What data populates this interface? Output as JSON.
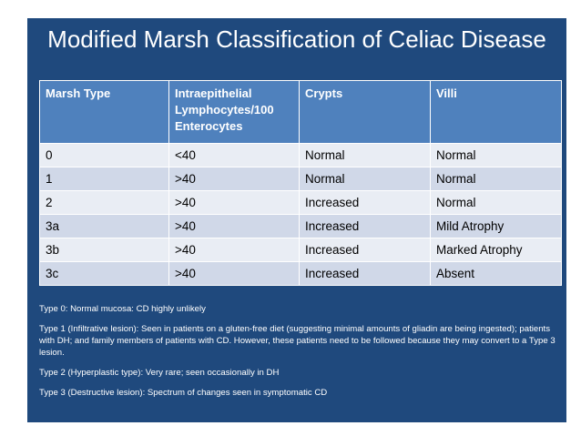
{
  "slide": {
    "title": "Modified Marsh Classification of Celiac Disease"
  },
  "table": {
    "headers": [
      "Marsh Type",
      "Intraepithelial Lymphocytes/100 Enterocytes",
      "Crypts",
      "Villi"
    ],
    "rows": [
      [
        "0",
        "<40",
        "Normal",
        "Normal"
      ],
      [
        "1",
        ">40",
        "Normal",
        "Normal"
      ],
      [
        "2",
        ">40",
        "Increased",
        "Normal"
      ],
      [
        "3a",
        ">40",
        "Increased",
        "Mild Atrophy"
      ],
      [
        "3b",
        ">40",
        "Increased",
        "Marked Atrophy"
      ],
      [
        "3c",
        ">40",
        "Increased",
        "Absent"
      ]
    ]
  },
  "notes": [
    "Type 0: Normal mucosa: CD highly unlikely",
    "Type 1 (Infiltrative lesion): Seen in patients on a gluten-free diet (suggesting minimal amounts of gliadin are being ingested); patients with DH; and family members of patients with CD. However, these patients need to be followed because they may convert to a Type 3 lesion.",
    "Type 2 (Hyperplastic type): Very rare; seen occasionally in DH",
    "Type 3 (Destructive lesion): Spectrum of changes seen in symptomatic CD"
  ],
  "colors": {
    "slide_background": "#1f497d",
    "header_fill": "#4f81bd",
    "row_fill_light": "#e9edf4",
    "row_fill_dark": "#d0d8e8"
  }
}
